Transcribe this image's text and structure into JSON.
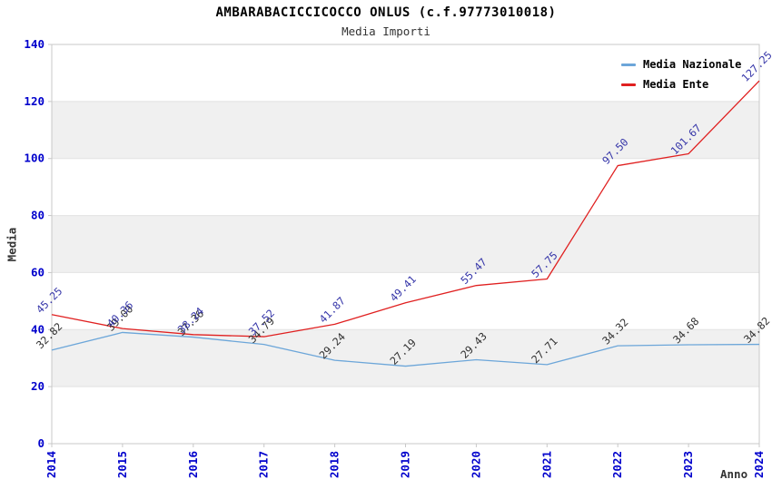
{
  "chart_data": {
    "type": "line",
    "title": "AMBARABACICCICOCCO ONLUS (c.f.97773010018)",
    "subtitle": "Media Importi",
    "xlabel": "Anno",
    "ylabel": "Media",
    "x": [
      2014,
      2015,
      2016,
      2017,
      2018,
      2019,
      2020,
      2021,
      2022,
      2023,
      2024
    ],
    "series": [
      {
        "name": "Media Nazionale",
        "color": "#6CA6D9",
        "label_color": "#303030",
        "values": [
          32.82,
          39.0,
          37.36,
          34.79,
          29.24,
          27.19,
          29.43,
          27.71,
          34.32,
          34.68,
          34.82
        ]
      },
      {
        "name": "Media Ente",
        "color": "#E02020",
        "label_color": "#3434A8",
        "values": [
          45.25,
          40.36,
          38.24,
          37.52,
          41.87,
          49.41,
          55.47,
          57.75,
          97.5,
          101.67,
          127.25
        ]
      }
    ],
    "ylim": [
      0,
      140
    ],
    "ytick_step": 20,
    "grid": true,
    "alternating_bands": true,
    "legend_position": "top-right"
  },
  "colors": {
    "axis_tick_text": "#0000CC",
    "band_fill": "#F0F0F0",
    "grid_line": "#E2E2E2",
    "plot_border": "#C8C8C8"
  }
}
